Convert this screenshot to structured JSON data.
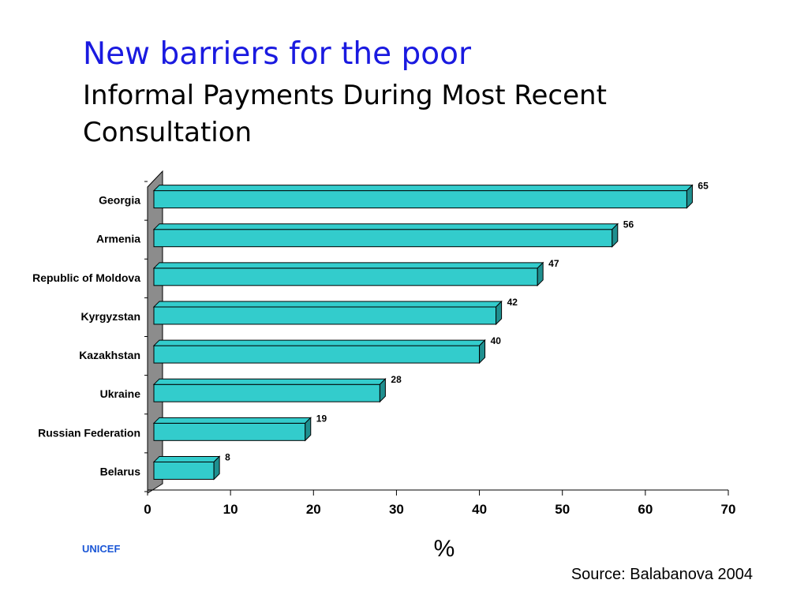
{
  "slide": {
    "title": "New barriers for the poor",
    "subtitle": "Informal Payments During Most Recent Consultation",
    "brand": "UNICEF",
    "source": "Source: Balabanova 2004"
  },
  "chart_data": {
    "type": "bar",
    "orientation": "horizontal",
    "categories": [
      "Georgia",
      "Armenia",
      "Republic of Moldova",
      "Kyrgyzstan",
      "Kazakhstan",
      "Ukraine",
      "Russian Federation",
      "Belarus"
    ],
    "values": [
      65,
      56,
      47,
      42,
      40,
      28,
      19,
      8
    ],
    "xlabel": "%",
    "ylabel": "",
    "xlim": [
      0,
      70
    ],
    "ticks": [
      0,
      10,
      20,
      30,
      40,
      50,
      60,
      70
    ],
    "data_labels": true,
    "grid": false,
    "style": "3d",
    "colors": {
      "bar_face": "#33cccc",
      "bar_side": "#1f8f8f",
      "wall": "#8c8c8c",
      "axis": "#000000"
    }
  }
}
